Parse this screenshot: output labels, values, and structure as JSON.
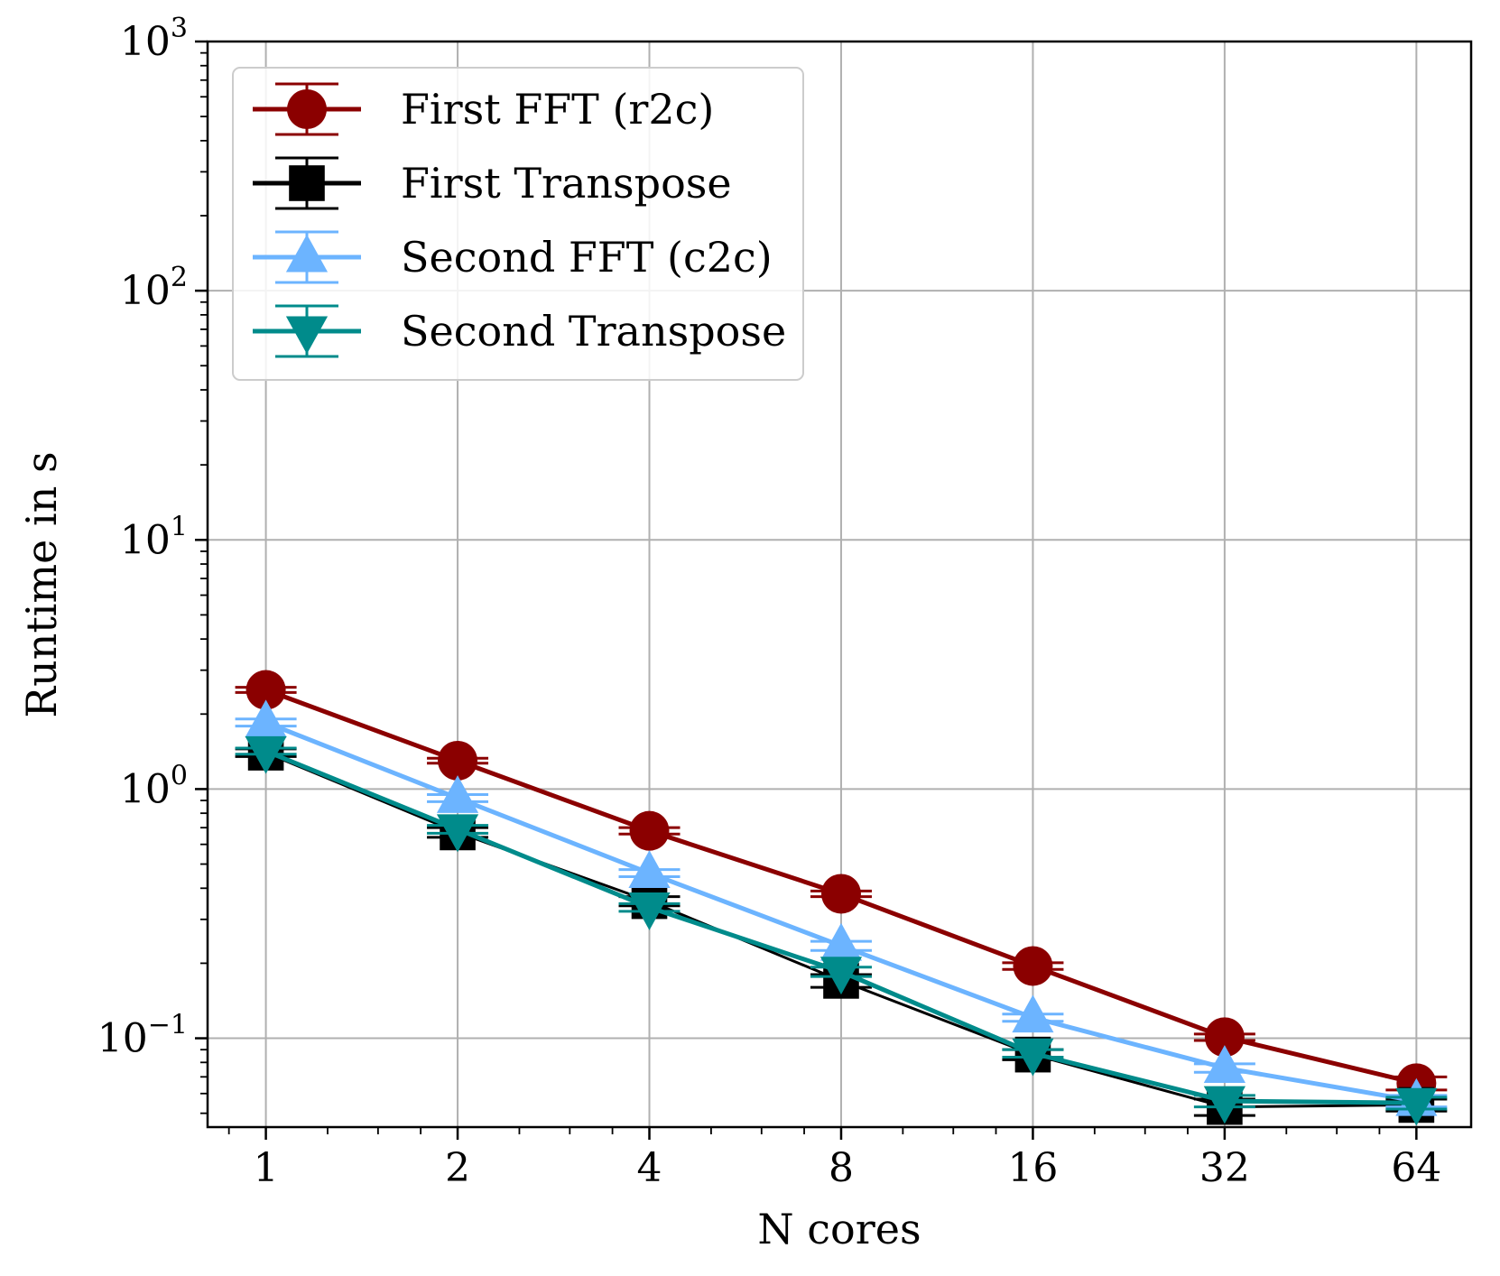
{
  "chart_data": {
    "type": "line",
    "title": "",
    "xlabel": "N cores",
    "ylabel": "Runtime in s",
    "x": [
      1,
      2,
      4,
      8,
      16,
      32,
      64
    ],
    "x_tick_labels": [
      "1",
      "2",
      "4",
      "8",
      "16",
      "32",
      "64"
    ],
    "x_scale": "log2",
    "y_scale": "log10",
    "xlim": [
      0.81,
      78
    ],
    "ylim": [
      0.044,
      1000
    ],
    "y_ticks": [
      {
        "base": "10",
        "exp": "−1",
        "value": 0.1
      },
      {
        "base": "10",
        "exp": "0",
        "value": 1
      },
      {
        "base": "10",
        "exp": "1",
        "value": 10
      },
      {
        "base": "10",
        "exp": "2",
        "value": 100
      },
      {
        "base": "10",
        "exp": "3",
        "value": 1000
      }
    ],
    "grid": true,
    "legend_position": "top-left",
    "series": [
      {
        "name": "First FFT (r2c)",
        "color": "#8b0000",
        "marker": "circle",
        "values": [
          2.5,
          1.3,
          0.68,
          0.38,
          0.195,
          0.101,
          0.066
        ],
        "errors": [
          0.06,
          0.03,
          0.02,
          0.01,
          0.006,
          0.003,
          0.004
        ]
      },
      {
        "name": "First Transpose",
        "color": "#000000",
        "marker": "square",
        "values": [
          1.4,
          0.67,
          0.355,
          0.17,
          0.086,
          0.053,
          0.054
        ],
        "errors": [
          0.05,
          0.03,
          0.015,
          0.01,
          0.004,
          0.004,
          0.003
        ]
      },
      {
        "name": "Second FFT (c2c)",
        "color": "#6cb4ff",
        "marker": "triangle-up",
        "values": [
          1.85,
          0.92,
          0.46,
          0.235,
          0.121,
          0.076,
          0.056
        ],
        "errors": [
          0.06,
          0.03,
          0.015,
          0.01,
          0.004,
          0.003,
          0.003
        ]
      },
      {
        "name": "Second Transpose",
        "color": "#008b8b",
        "marker": "triangle-down",
        "values": [
          1.42,
          0.69,
          0.335,
          0.185,
          0.087,
          0.056,
          0.055
        ],
        "errors": [
          0.04,
          0.025,
          0.012,
          0.008,
          0.003,
          0.003,
          0.003
        ]
      }
    ]
  }
}
